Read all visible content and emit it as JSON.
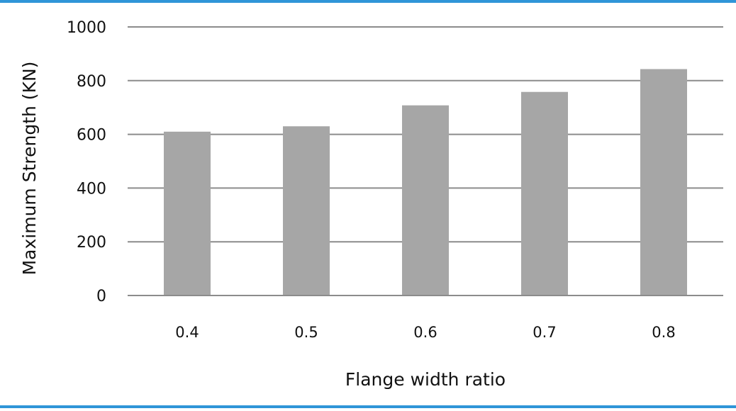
{
  "chart_data": {
    "type": "bar",
    "categories": [
      "0.4",
      "0.5",
      "0.6",
      "0.7",
      "0.8"
    ],
    "values": [
      610,
      630,
      708,
      758,
      843
    ],
    "title": "",
    "xlabel": "Flange width ratio",
    "ylabel": "Maximum Strength (KN)",
    "ylim": [
      0,
      1000
    ],
    "yticks": [
      0,
      200,
      400,
      600,
      800,
      1000
    ],
    "grid": true,
    "legend": "none",
    "colors": {
      "bar": "#a6a6a6",
      "grid": "#8c8c8c",
      "axis": "#8c8c8c",
      "frame": "#2f95d8"
    }
  }
}
